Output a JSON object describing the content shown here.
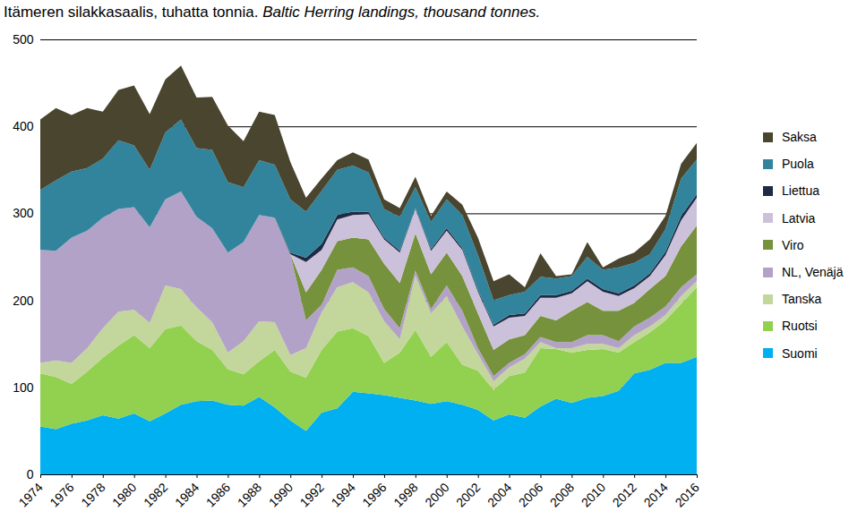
{
  "chart_data": {
    "type": "area",
    "stacked": true,
    "title": "Itämeren silakkasaalis, tuhatta tonnia.",
    "subtitle": "Baltic Herring landings, thousand tonnes.",
    "grid": true,
    "legend": "right",
    "x": [
      1974,
      1975,
      1976,
      1977,
      1978,
      1979,
      1980,
      1981,
      1982,
      1983,
      1984,
      1985,
      1986,
      1987,
      1988,
      1989,
      1990,
      1991,
      1992,
      1993,
      1994,
      1995,
      1996,
      1997,
      1998,
      1999,
      2000,
      2001,
      2002,
      2003,
      2004,
      2005,
      2006,
      2007,
      2008,
      2009,
      2010,
      2011,
      2012,
      2013,
      2014,
      2015,
      2016
    ],
    "xlim": [
      1974,
      2016
    ],
    "xticks": [
      1974,
      1976,
      1978,
      1980,
      1982,
      1984,
      1986,
      1988,
      1990,
      1992,
      1994,
      1996,
      1998,
      2000,
      2002,
      2004,
      2006,
      2008,
      2010,
      2012,
      2014,
      2016
    ],
    "ylim": [
      0,
      500
    ],
    "yticks": [
      0,
      100,
      200,
      300,
      400,
      500
    ],
    "series": [
      {
        "name": "Suomi",
        "color": "#00b0f0",
        "values": [
          55,
          52,
          58,
          62,
          68,
          64,
          70,
          61,
          70,
          80,
          84,
          85,
          80,
          79,
          89,
          77,
          62,
          50,
          71,
          76,
          95,
          93,
          91,
          88,
          85,
          81,
          84,
          80,
          74,
          62,
          69,
          65,
          78,
          87,
          82,
          88,
          90,
          96,
          116,
          120,
          128,
          128,
          135
        ]
      },
      {
        "name": "Ruotsi",
        "color": "#92d050",
        "values": [
          61,
          60,
          46,
          56,
          66,
          84,
          90,
          84,
          97,
          91,
          69,
          58,
          41,
          36,
          41,
          66,
          56,
          61,
          72,
          88,
          73,
          66,
          37,
          52,
          81,
          54,
          68,
          46,
          45,
          35,
          44,
          52,
          67,
          57,
          58,
          55,
          54,
          44,
          36,
          43,
          49,
          68,
          80
        ]
      },
      {
        "name": "Tanska",
        "color": "#c3d69b",
        "values": [
          12,
          19,
          24,
          27,
          34,
          39,
          29,
          29,
          50,
          42,
          39,
          32,
          19,
          38,
          46,
          32,
          19,
          34,
          43,
          51,
          53,
          50,
          48,
          15,
          62,
          50,
          53,
          44,
          19,
          10,
          10,
          16,
          7,
          1,
          5,
          7,
          6,
          5,
          8,
          7,
          6,
          9,
          7
        ]
      },
      {
        "name": "NL, Venäjä",
        "color": "#b3a2c7",
        "values": [
          130,
          126,
          144,
          135,
          127,
          118,
          118,
          110,
          99,
          112,
          104,
          108,
          115,
          114,
          122,
          120,
          116,
          32,
          9,
          20,
          17,
          19,
          14,
          13,
          6,
          5,
          12,
          18,
          7,
          6,
          5,
          5,
          6,
          7,
          7,
          10,
          10,
          8,
          10,
          10,
          10,
          10,
          8
        ]
      },
      {
        "name": "Viro",
        "color": "#76923c",
        "values": [
          0,
          0,
          0,
          0,
          0,
          0,
          0,
          0,
          0,
          0,
          0,
          0,
          0,
          0,
          0,
          0,
          0,
          32,
          40,
          33,
          34,
          42,
          52,
          52,
          43,
          40,
          38,
          40,
          40,
          30,
          27,
          22,
          24,
          25,
          36,
          38,
          28,
          35,
          27,
          33,
          35,
          47,
          56
        ]
      },
      {
        "name": "Latvia",
        "color": "#ccc1da",
        "values": [
          0,
          0,
          0,
          0,
          0,
          0,
          0,
          0,
          0,
          0,
          0,
          0,
          0,
          0,
          0,
          0,
          0,
          35,
          23,
          25,
          26,
          29,
          28,
          35,
          28,
          27,
          25,
          30,
          25,
          27,
          25,
          22,
          21,
          26,
          20,
          24,
          22,
          17,
          17,
          15,
          24,
          30,
          32
        ]
      },
      {
        "name": "Liettua",
        "color": "#1f2a44",
        "values": [
          0,
          0,
          0,
          0,
          0,
          0,
          0,
          0,
          0,
          0,
          0,
          0,
          0,
          0,
          0,
          0,
          2,
          5,
          7,
          5,
          4,
          3,
          2,
          2,
          1,
          2,
          3,
          2,
          2,
          2,
          3,
          3,
          3,
          3,
          3,
          3,
          3,
          3,
          3,
          3,
          4,
          5,
          4
        ]
      },
      {
        "name": "Puola",
        "color": "#31849b",
        "values": [
          69,
          81,
          76,
          72,
          68,
          79,
          71,
          66,
          77,
          83,
          79,
          90,
          81,
          63,
          63,
          61,
          61,
          53,
          61,
          52,
          53,
          45,
          33,
          39,
          24,
          31,
          33,
          38,
          40,
          28,
          23,
          25,
          21,
          19,
          17,
          25,
          22,
          30,
          26,
          22,
          26,
          43,
          40
        ]
      },
      {
        "name": "Saksa",
        "color": "#49452f",
        "values": [
          81,
          83,
          65,
          69,
          54,
          58,
          69,
          64,
          61,
          62,
          58,
          61,
          65,
          53,
          56,
          57,
          43,
          16,
          14,
          11,
          15,
          15,
          11,
          10,
          12,
          7,
          9,
          12,
          20,
          22,
          24,
          5,
          27,
          3,
          2,
          17,
          3,
          10,
          12,
          17,
          15,
          17,
          19
        ]
      }
    ]
  }
}
